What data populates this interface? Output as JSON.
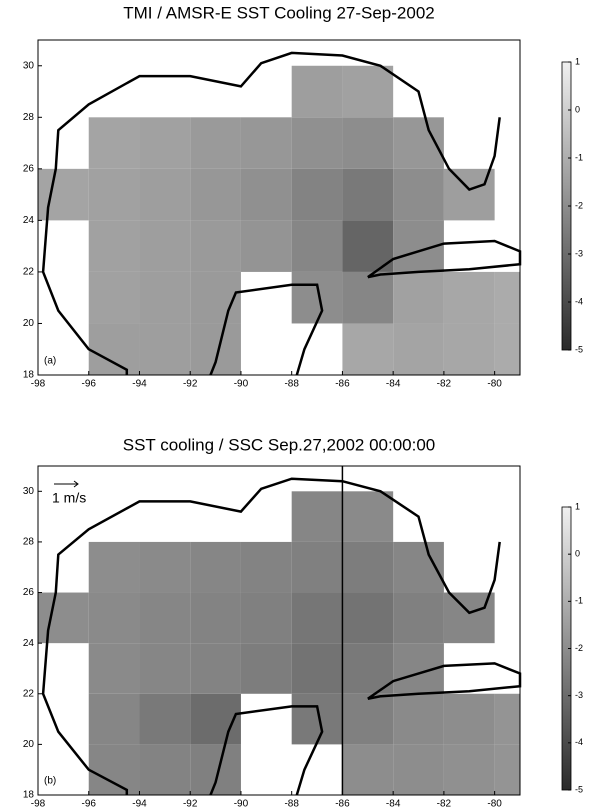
{
  "chart_data": [
    {
      "type": "heatmap",
      "title": "TMI / AMSR-E SST Cooling    27-Sep-2002",
      "panel_label": "(a)",
      "xlim": [
        -98,
        -79
      ],
      "ylim": [
        18,
        31
      ],
      "xticks": [
        -98,
        -96,
        -94,
        -92,
        -90,
        -88,
        -86,
        -84,
        -82,
        -80
      ],
      "yticks": [
        18,
        20,
        22,
        24,
        26,
        28,
        30
      ],
      "x": [
        -97,
        -95,
        -93,
        -91,
        -89,
        -87,
        -85,
        -83,
        -81,
        -79
      ],
      "y": [
        19,
        21,
        23,
        25,
        27,
        29,
        31
      ],
      "values": [
        [
          null,
          -1.5,
          -1.5,
          -1.6,
          null,
          null,
          -1.2,
          -1.3,
          -1.2,
          -1.1
        ],
        [
          null,
          -1.4,
          -1.5,
          -1.6,
          null,
          -2.0,
          -2.2,
          -1.4,
          -1.2,
          -1.1
        ],
        [
          null,
          -1.4,
          -1.5,
          -1.6,
          -1.8,
          -2.2,
          -3.2,
          -2.0,
          null,
          null
        ],
        [
          -1.3,
          -1.4,
          -1.5,
          -1.7,
          -1.9,
          -2.3,
          -2.6,
          -2.0,
          -1.5,
          null
        ],
        [
          null,
          -1.3,
          -1.4,
          -1.6,
          -1.7,
          -1.9,
          -2.0,
          -1.7,
          null,
          null
        ],
        [
          null,
          null,
          null,
          null,
          null,
          -1.5,
          -1.4,
          null,
          null,
          null
        ],
        [
          null,
          null,
          null,
          null,
          null,
          null,
          null,
          null,
          null,
          null
        ]
      ],
      "clim": [
        -5,
        1
      ],
      "cticks": [
        1,
        0,
        -1,
        -2,
        -3,
        -4,
        -5
      ]
    },
    {
      "type": "heatmap",
      "title": "SST cooling / SSC   Sep.27,2002 00:00:00",
      "panel_label": "(b)",
      "scale_label": "1 m/s",
      "vline": -86,
      "xlim": [
        -98,
        -79
      ],
      "ylim": [
        18,
        31
      ],
      "xticks": [
        -98,
        -96,
        -94,
        -92,
        -90,
        -88,
        -86,
        -84,
        -82,
        -80
      ],
      "yticks": [
        18,
        20,
        22,
        24,
        26,
        28,
        30
      ],
      "x": [
        -97,
        -95,
        -93,
        -91,
        -89,
        -87,
        -85,
        -83,
        -81,
        -79
      ],
      "y": [
        19,
        21,
        23,
        25,
        27,
        29,
        31
      ],
      "values": [
        [
          null,
          -2.2,
          -2.3,
          -2.4,
          null,
          null,
          -2.0,
          -2.0,
          -1.9,
          -1.8
        ],
        [
          null,
          -2.2,
          -2.6,
          -3.0,
          null,
          -2.6,
          -2.4,
          -2.1,
          -2.0,
          -1.8
        ],
        [
          null,
          -2.1,
          -2.2,
          -2.3,
          -2.5,
          -2.8,
          -2.6,
          -2.2,
          null,
          null
        ],
        [
          -2.0,
          -2.1,
          -2.2,
          -2.3,
          -2.4,
          -2.7,
          -2.8,
          -2.4,
          -2.2,
          null
        ],
        [
          null,
          -2.0,
          -2.1,
          -2.2,
          -2.3,
          -2.4,
          -2.5,
          -2.2,
          null,
          null
        ],
        [
          null,
          null,
          null,
          null,
          null,
          -2.2,
          -2.1,
          null,
          null,
          null
        ],
        [
          null,
          null,
          null,
          null,
          null,
          null,
          null,
          null,
          null,
          null
        ]
      ],
      "clim": [
        -5,
        1
      ],
      "cticks": [
        1,
        0,
        -1,
        -2,
        -3,
        -4,
        -5
      ]
    }
  ]
}
